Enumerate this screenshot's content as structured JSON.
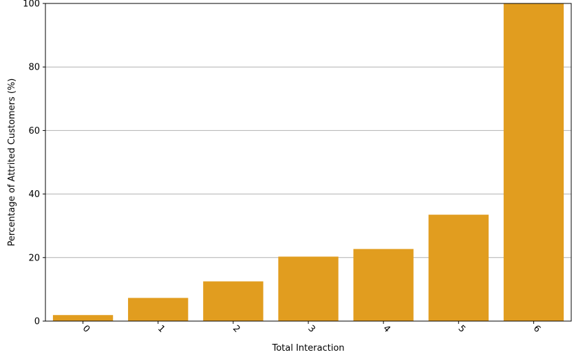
{
  "chart_data": {
    "type": "bar",
    "title": "",
    "xlabel": "Total Interaction",
    "ylabel": "Percentage of Attrited Customers (%)",
    "categories": [
      "0",
      "1",
      "2",
      "3",
      "4",
      "5",
      "6"
    ],
    "values": [
      1.9,
      7.3,
      12.5,
      20.3,
      22.7,
      33.5,
      100
    ],
    "ylim": [
      0,
      100
    ],
    "yticks": [
      0,
      20,
      40,
      60,
      80,
      100
    ],
    "grid": "y-axis only",
    "legend": "none",
    "x_tick_rotation": 45,
    "bar_color": "#e19d1f",
    "colors": {
      "grid": "#b0b0b0"
    }
  }
}
